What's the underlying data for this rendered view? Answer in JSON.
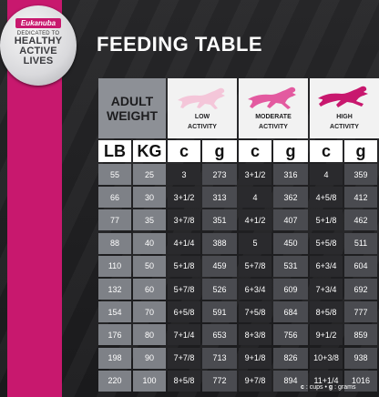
{
  "badge": {
    "brand": "Eukanuba",
    "dedicated": "DEDICATED TO",
    "line1": "HEALTHY",
    "line2": "ACTIVE",
    "line3": "LIVES"
  },
  "title": "FEEDING TABLE",
  "header": {
    "weight_line1": "ADULT",
    "weight_line2": "WEIGHT",
    "activities": [
      {
        "line1": "LOW",
        "line2": "ACTIVITY",
        "color": "#f4c6d9"
      },
      {
        "line1": "MODERATE",
        "line2": "ACTIVITY",
        "color": "#e35aa0"
      },
      {
        "line1": "HIGH",
        "line2": "ACTIVITY",
        "color": "#c8186e"
      }
    ]
  },
  "units": [
    "LB",
    "KG",
    "c",
    "g",
    "c",
    "g",
    "c",
    "g"
  ],
  "rows": [
    [
      "55",
      "25",
      "3",
      "273",
      "3+1/2",
      "316",
      "4",
      "359"
    ],
    [
      "66",
      "30",
      "3+1/2",
      "313",
      "4",
      "362",
      "4+5/8",
      "412"
    ],
    [
      "77",
      "35",
      "3+7/8",
      "351",
      "4+1/2",
      "407",
      "5+1/8",
      "462"
    ],
    [
      "88",
      "40",
      "4+1/4",
      "388",
      "5",
      "450",
      "5+5/8",
      "511"
    ],
    [
      "110",
      "50",
      "5+1/8",
      "459",
      "5+7/8",
      "531",
      "6+3/4",
      "604"
    ],
    [
      "132",
      "60",
      "5+7/8",
      "526",
      "6+3/4",
      "609",
      "7+3/4",
      "692"
    ],
    [
      "154",
      "70",
      "6+5/8",
      "591",
      "7+5/8",
      "684",
      "8+5/8",
      "777"
    ],
    [
      "176",
      "80",
      "7+1/4",
      "653",
      "8+3/8",
      "756",
      "9+1/2",
      "859"
    ],
    [
      "198",
      "90",
      "7+7/8",
      "713",
      "9+1/8",
      "826",
      "10+3/8",
      "938"
    ],
    [
      "220",
      "100",
      "8+5/8",
      "772",
      "9+7/8",
      "894",
      "11+1/4",
      "1016"
    ]
  ],
  "legend": {
    "c": "c",
    "c_text": " : cups • ",
    "g": "g",
    "g_text": " : grams"
  }
}
